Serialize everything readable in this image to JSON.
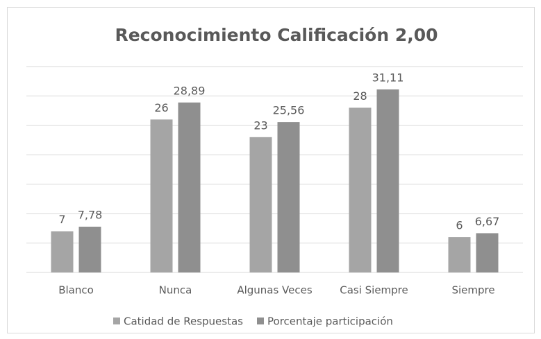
{
  "chart_data": {
    "type": "bar",
    "title": "Reconocimiento Calificación 2,00",
    "categories": [
      "Blanco",
      "Nunca",
      "Algunas Veces",
      "Casi Siempre",
      "Siempre"
    ],
    "series": [
      {
        "name": "Catidad de Respuestas",
        "color": "#a5a5a5",
        "values": [
          7,
          26,
          23,
          28,
          6
        ]
      },
      {
        "name": "Porcentaje participación",
        "color": "#8f8f8f",
        "values": [
          7.78,
          28.89,
          25.56,
          31.11,
          6.67
        ],
        "value_labels": [
          "7,78",
          "28,89",
          "25,56",
          "31,11",
          "6,67"
        ]
      }
    ],
    "ylim": [
      0,
      35
    ],
    "yticks": [
      0,
      5,
      10,
      15,
      20,
      25,
      30,
      35
    ],
    "grid": true,
    "legend": "bottom"
  }
}
